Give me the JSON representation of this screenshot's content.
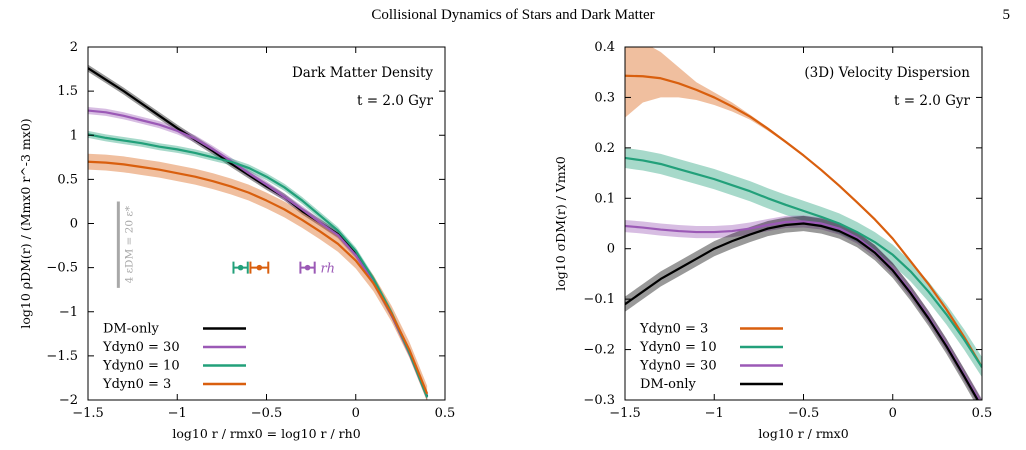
{
  "header": {
    "running_title": "Collisional Dynamics of Stars and Dark Matter",
    "page_number": "5"
  },
  "colors": {
    "dm_only": "#000000",
    "upsilon_30": "#9b59b6",
    "upsilon_10": "#22a07a",
    "upsilon_3": "#d95f0e",
    "softening_bar": "#a8a8a8"
  },
  "chart_data": [
    {
      "type": "line",
      "panel": "left",
      "title": "Dark Matter Density",
      "subtitle": "t = 2.0 Gyr",
      "xlabel": "log10 r / rmx0 = log10 r / rh0",
      "ylabel": "log10 ρDM(r) / (Mmx0 r^-3 mx0)",
      "xlim": [
        -1.5,
        0.5
      ],
      "ylim": [
        -2,
        2
      ],
      "xticks": [
        -1.5,
        -1,
        -0.5,
        0,
        0.5
      ],
      "xtick_labels": [
        "−1.5",
        "−1",
        "−0.5",
        "0",
        "0.5"
      ],
      "yticks": [
        -2,
        -1.5,
        -1,
        -0.5,
        0,
        0.5,
        1,
        1.5,
        2
      ],
      "ytick_labels": [
        "−2",
        "−1.5",
        "−1",
        "−0.5",
        "0",
        "0.5",
        "1",
        "1.5",
        "2"
      ],
      "legend_position": "bottom-left",
      "series": [
        {
          "name": "DM-only",
          "color_key": "dm_only",
          "x": [
            -1.5,
            -1.4,
            -1.3,
            -1.2,
            -1.1,
            -1.0,
            -0.9,
            -0.8,
            -0.7,
            -0.6,
            -0.5,
            -0.4,
            -0.3,
            -0.2,
            -0.1,
            0.0,
            0.1,
            0.2,
            0.3,
            0.4
          ],
          "y": [
            1.76,
            1.63,
            1.5,
            1.36,
            1.22,
            1.08,
            0.95,
            0.82,
            0.68,
            0.55,
            0.42,
            0.3,
            0.14,
            0.01,
            -0.12,
            -0.34,
            -0.66,
            -1.03,
            -1.46,
            -1.96
          ],
          "band": 0.04
        },
        {
          "name": "Υdyn0 = 30",
          "color_key": "upsilon_30",
          "x": [
            -1.5,
            -1.4,
            -1.3,
            -1.2,
            -1.1,
            -1.0,
            -0.9,
            -0.8,
            -0.7,
            -0.6,
            -0.5,
            -0.4,
            -0.3,
            -0.2,
            -0.1,
            0.0,
            0.1,
            0.2,
            0.3,
            0.4
          ],
          "y": [
            1.28,
            1.26,
            1.22,
            1.17,
            1.12,
            1.05,
            0.96,
            0.84,
            0.71,
            0.57,
            0.44,
            0.3,
            0.16,
            0.01,
            -0.13,
            -0.36,
            -0.67,
            -1.03,
            -1.47,
            -1.97
          ],
          "band": 0.04
        },
        {
          "name": "Υdyn0 = 10",
          "color_key": "upsilon_10",
          "x": [
            -1.5,
            -1.4,
            -1.3,
            -1.2,
            -1.1,
            -1.0,
            -0.9,
            -0.8,
            -0.7,
            -0.6,
            -0.5,
            -0.4,
            -0.3,
            -0.2,
            -0.1,
            0.0,
            0.1,
            0.2,
            0.3,
            0.4
          ],
          "y": [
            1.01,
            0.97,
            0.94,
            0.91,
            0.87,
            0.84,
            0.8,
            0.75,
            0.7,
            0.63,
            0.53,
            0.41,
            0.26,
            0.09,
            -0.08,
            -0.31,
            -0.63,
            -1.01,
            -1.46,
            -1.97
          ],
          "band": 0.04
        },
        {
          "name": "Υdyn0 = 3",
          "color_key": "upsilon_3",
          "x": [
            -1.5,
            -1.4,
            -1.3,
            -1.2,
            -1.1,
            -1.0,
            -0.9,
            -0.8,
            -0.7,
            -0.6,
            -0.5,
            -0.4,
            -0.3,
            -0.2,
            -0.1,
            0.0,
            0.1,
            0.2,
            0.3,
            0.4
          ],
          "y": [
            0.7,
            0.69,
            0.67,
            0.64,
            0.61,
            0.57,
            0.53,
            0.48,
            0.42,
            0.35,
            0.26,
            0.16,
            0.04,
            -0.09,
            -0.23,
            -0.42,
            -0.68,
            -1.02,
            -1.43,
            -1.93
          ],
          "band": 0.09
        }
      ],
      "annotations": {
        "softening_label": "4 εDM = 20 ε*",
        "rh_label": "rh",
        "rh_markers": [
          {
            "color_key": "upsilon_10",
            "x": -0.645,
            "xerr": 0.04,
            "y": -0.5
          },
          {
            "color_key": "upsilon_3",
            "x": -0.54,
            "xerr": 0.05,
            "y": -0.5
          },
          {
            "color_key": "upsilon_30",
            "x": -0.27,
            "xerr": 0.04,
            "y": -0.5
          }
        ]
      }
    },
    {
      "type": "line",
      "panel": "right",
      "title": "(3D) Velocity Dispersion",
      "subtitle": "t = 2.0 Gyr",
      "xlabel": "log10 r / rmx0",
      "ylabel": "log10 σDM(r) / Vmx0",
      "xlim": [
        -1.5,
        0.5
      ],
      "ylim": [
        -0.3,
        0.4
      ],
      "xticks": [
        -1.5,
        -1,
        -0.5,
        0,
        0.5
      ],
      "xtick_labels": [
        "−1.5",
        "−1",
        "−0.5",
        "0",
        "0.5"
      ],
      "yticks": [
        -0.3,
        -0.2,
        -0.1,
        0,
        0.1,
        0.2,
        0.3,
        0.4
      ],
      "ytick_labels": [
        "−0.3",
        "−0.2",
        "−0.1",
        "0",
        "0.1",
        "0.2",
        "0.3",
        "0.4"
      ],
      "legend_position": "bottom-left",
      "series": [
        {
          "name": "Υdyn0 = 3",
          "color_key": "upsilon_3",
          "x": [
            -1.5,
            -1.4,
            -1.3,
            -1.2,
            -1.1,
            -1.0,
            -0.9,
            -0.8,
            -0.7,
            -0.6,
            -0.5,
            -0.4,
            -0.3,
            -0.2,
            -0.1,
            0.0,
            0.1,
            0.2,
            0.3,
            0.4,
            0.5
          ],
          "y": [
            0.343,
            0.342,
            0.338,
            0.328,
            0.315,
            0.3,
            0.282,
            0.262,
            0.238,
            0.212,
            0.185,
            0.156,
            0.125,
            0.092,
            0.058,
            0.02,
            -0.025,
            -0.07,
            -0.12,
            -0.175,
            -0.235
          ],
          "band_upper": [
            0.42,
            0.41,
            0.39,
            0.36,
            0.33,
            0.31,
            0.29,
            0.266,
            0.241,
            0.214,
            0.187,
            0.158,
            0.127,
            0.094,
            0.06,
            0.022,
            -0.023,
            -0.068,
            -0.118,
            -0.173,
            -0.233
          ],
          "band_lower": [
            0.26,
            0.29,
            0.3,
            0.3,
            0.295,
            0.285,
            0.272,
            0.256,
            0.234,
            0.21,
            0.183,
            0.154,
            0.123,
            0.09,
            0.056,
            0.018,
            -0.027,
            -0.072,
            -0.122,
            -0.177,
            -0.237
          ]
        },
        {
          "name": "Υdyn0 = 10",
          "color_key": "upsilon_10",
          "x": [
            -1.5,
            -1.4,
            -1.3,
            -1.2,
            -1.1,
            -1.0,
            -0.9,
            -0.8,
            -0.7,
            -0.6,
            -0.5,
            -0.4,
            -0.3,
            -0.2,
            -0.1,
            0.0,
            0.1,
            0.2,
            0.3,
            0.4,
            0.5
          ],
          "y": [
            0.18,
            0.175,
            0.168,
            0.158,
            0.148,
            0.138,
            0.126,
            0.114,
            0.1,
            0.087,
            0.075,
            0.063,
            0.05,
            0.033,
            0.013,
            -0.012,
            -0.045,
            -0.085,
            -0.13,
            -0.18,
            -0.235
          ],
          "band": 0.02
        },
        {
          "name": "Υdyn0 = 30",
          "color_key": "upsilon_30",
          "x": [
            -1.5,
            -1.4,
            -1.3,
            -1.2,
            -1.1,
            -1.0,
            -0.9,
            -0.8,
            -0.7,
            -0.6,
            -0.5,
            -0.4,
            -0.3,
            -0.2,
            -0.1,
            0.0,
            0.1,
            0.2,
            0.3,
            0.4,
            0.5
          ],
          "y": [
            0.045,
            0.042,
            0.038,
            0.035,
            0.033,
            0.033,
            0.035,
            0.04,
            0.047,
            0.053,
            0.054,
            0.05,
            0.04,
            0.022,
            -0.005,
            -0.04,
            -0.085,
            -0.135,
            -0.19,
            -0.25,
            -0.31
          ],
          "band": 0.012
        },
        {
          "name": "DM-only",
          "color_key": "dm_only",
          "x": [
            -1.5,
            -1.4,
            -1.3,
            -1.2,
            -1.1,
            -1.0,
            -0.9,
            -0.8,
            -0.7,
            -0.6,
            -0.5,
            -0.4,
            -0.3,
            -0.2,
            -0.1,
            0.0,
            0.1,
            0.2,
            0.3,
            0.4,
            0.5
          ],
          "y": [
            -0.11,
            -0.085,
            -0.06,
            -0.04,
            -0.02,
            0.0,
            0.015,
            0.028,
            0.04,
            0.047,
            0.05,
            0.045,
            0.035,
            0.018,
            -0.008,
            -0.043,
            -0.088,
            -0.138,
            -0.193,
            -0.253,
            -0.315
          ],
          "band": 0.015
        }
      ]
    }
  ]
}
